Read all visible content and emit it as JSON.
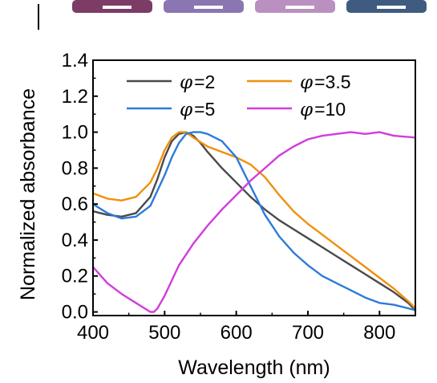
{
  "chart_data": {
    "type": "line",
    "title": "",
    "xlabel": "Wavelength (nm)",
    "ylabel": "Normalized absorbance",
    "xlim": [
      400,
      850
    ],
    "ylim": [
      -0.02,
      1.4
    ],
    "x_ticks": [
      400,
      500,
      600,
      700,
      800
    ],
    "y_ticks": [
      0.0,
      0.2,
      0.4,
      0.6,
      0.8,
      1.0,
      1.2,
      1.4
    ],
    "x_tick_labels": [
      "400",
      "500",
      "600",
      "700",
      "800"
    ],
    "y_tick_labels": [
      "0.0",
      "0.2",
      "0.4",
      "0.6",
      "0.8",
      "1.0",
      "1.2",
      "1.4"
    ],
    "grid": false,
    "legend_position": "top",
    "series": [
      {
        "name": "=2",
        "color": "#4a4a4a",
        "x": [
          400,
          420,
          440,
          460,
          480,
          490,
          500,
          510,
          520,
          530,
          540,
          550,
          560,
          580,
          600,
          620,
          640,
          660,
          680,
          700,
          720,
          740,
          760,
          780,
          800,
          820,
          840,
          850
        ],
        "y": [
          0.56,
          0.54,
          0.53,
          0.55,
          0.64,
          0.74,
          0.86,
          0.95,
          0.99,
          1.0,
          0.98,
          0.94,
          0.89,
          0.8,
          0.72,
          0.64,
          0.57,
          0.51,
          0.46,
          0.41,
          0.36,
          0.31,
          0.26,
          0.21,
          0.16,
          0.11,
          0.05,
          0.01
        ]
      },
      {
        "name": "=3.5",
        "color": "#f0900a",
        "x": [
          400,
          420,
          440,
          460,
          480,
          490,
          500,
          510,
          520,
          530,
          540,
          560,
          580,
          600,
          620,
          640,
          660,
          680,
          700,
          720,
          740,
          760,
          780,
          800,
          820,
          840,
          850
        ],
        "y": [
          0.66,
          0.63,
          0.62,
          0.64,
          0.72,
          0.8,
          0.9,
          0.97,
          1.0,
          1.0,
          0.97,
          0.92,
          0.89,
          0.86,
          0.82,
          0.75,
          0.65,
          0.56,
          0.49,
          0.43,
          0.37,
          0.31,
          0.25,
          0.19,
          0.13,
          0.06,
          0.02
        ]
      },
      {
        "name": "=5",
        "color": "#2c7bd8",
        "x": [
          400,
          420,
          440,
          460,
          480,
          500,
          510,
          520,
          530,
          540,
          550,
          560,
          580,
          600,
          620,
          640,
          660,
          680,
          700,
          720,
          740,
          760,
          780,
          800,
          820,
          840,
          850
        ],
        "y": [
          0.6,
          0.55,
          0.52,
          0.53,
          0.59,
          0.76,
          0.86,
          0.94,
          0.99,
          1.0,
          1.0,
          0.99,
          0.95,
          0.86,
          0.7,
          0.54,
          0.42,
          0.33,
          0.26,
          0.2,
          0.16,
          0.12,
          0.08,
          0.05,
          0.04,
          0.02,
          0.01
        ]
      },
      {
        "name": "=10",
        "color": "#d23cdc",
        "x": [
          400,
          420,
          440,
          460,
          480,
          485,
          490,
          500,
          520,
          540,
          560,
          580,
          600,
          620,
          640,
          660,
          680,
          700,
          720,
          740,
          760,
          780,
          800,
          820,
          850
        ],
        "y": [
          0.25,
          0.16,
          0.1,
          0.05,
          0.0,
          0.0,
          0.02,
          0.09,
          0.26,
          0.38,
          0.48,
          0.57,
          0.65,
          0.73,
          0.8,
          0.87,
          0.92,
          0.96,
          0.98,
          0.99,
          1.0,
          0.99,
          1.0,
          0.98,
          0.97
        ]
      }
    ]
  },
  "legend_symbol": "φ",
  "top_strip_colors": [
    "#7c3c66",
    "#8a76b0",
    "#b990c0",
    "#3f5c80"
  ]
}
